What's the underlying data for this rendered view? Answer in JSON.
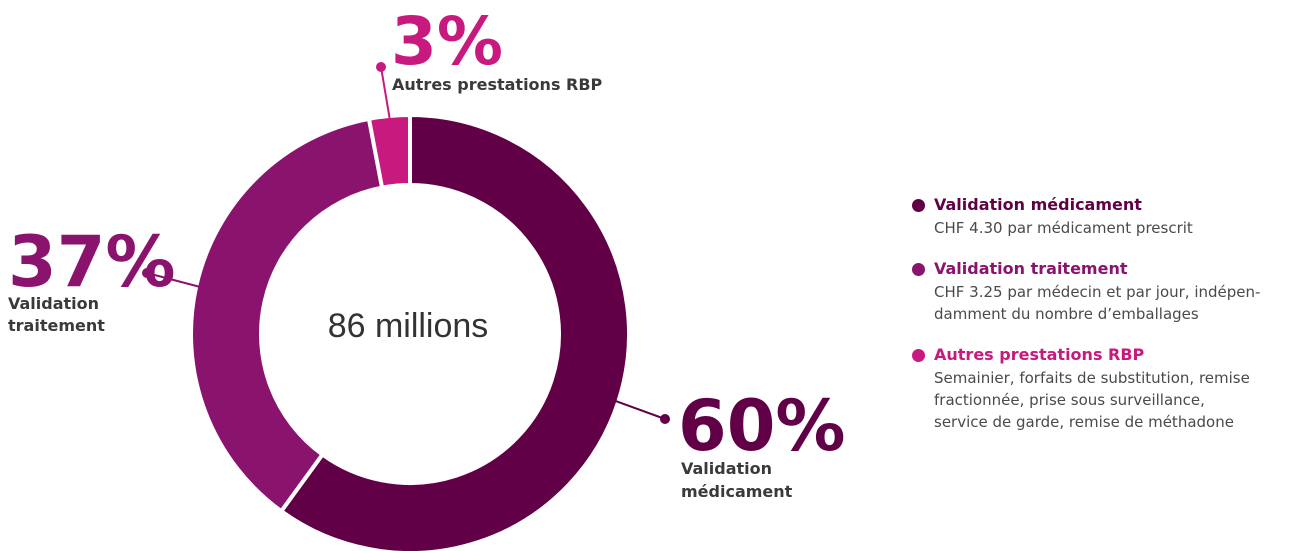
{
  "chart_data": {
    "type": "pie",
    "center_label": "86 millions",
    "slices": [
      {
        "name": "Validation médicament",
        "label_line1": "Validation",
        "label_line2": "médicament",
        "value": 60,
        "display": "60%",
        "color": "#610046"
      },
      {
        "name": "Validation traitement",
        "label_line1": "Validation",
        "label_line2": "traitement",
        "value": 37,
        "display": "37%",
        "color": "#8a136e"
      },
      {
        "name": "Autres prestations RBP",
        "label_line1": "Autres prestations RBP",
        "label_line2": "",
        "value": 3,
        "display": "3%",
        "color": "#c8197f"
      }
    ]
  },
  "legend": {
    "items": [
      {
        "title": "Validation médicament",
        "lines": [
          "CHF 4.30 par médicament prescrit"
        ],
        "color": "#610046"
      },
      {
        "title": "Validation traitement",
        "lines": [
          "CHF 3.25 par médecin et par jour, indépen-",
          "damment du nombre d’emballages"
        ],
        "color": "#8a136e"
      },
      {
        "title": "Autres prestations RBP",
        "lines": [
          "Semainier, forfaits de substitution, remise",
          "fractionnée, prise sous surveillance,",
          "service de garde, remise de méthadone"
        ],
        "color": "#c8197f"
      }
    ]
  }
}
